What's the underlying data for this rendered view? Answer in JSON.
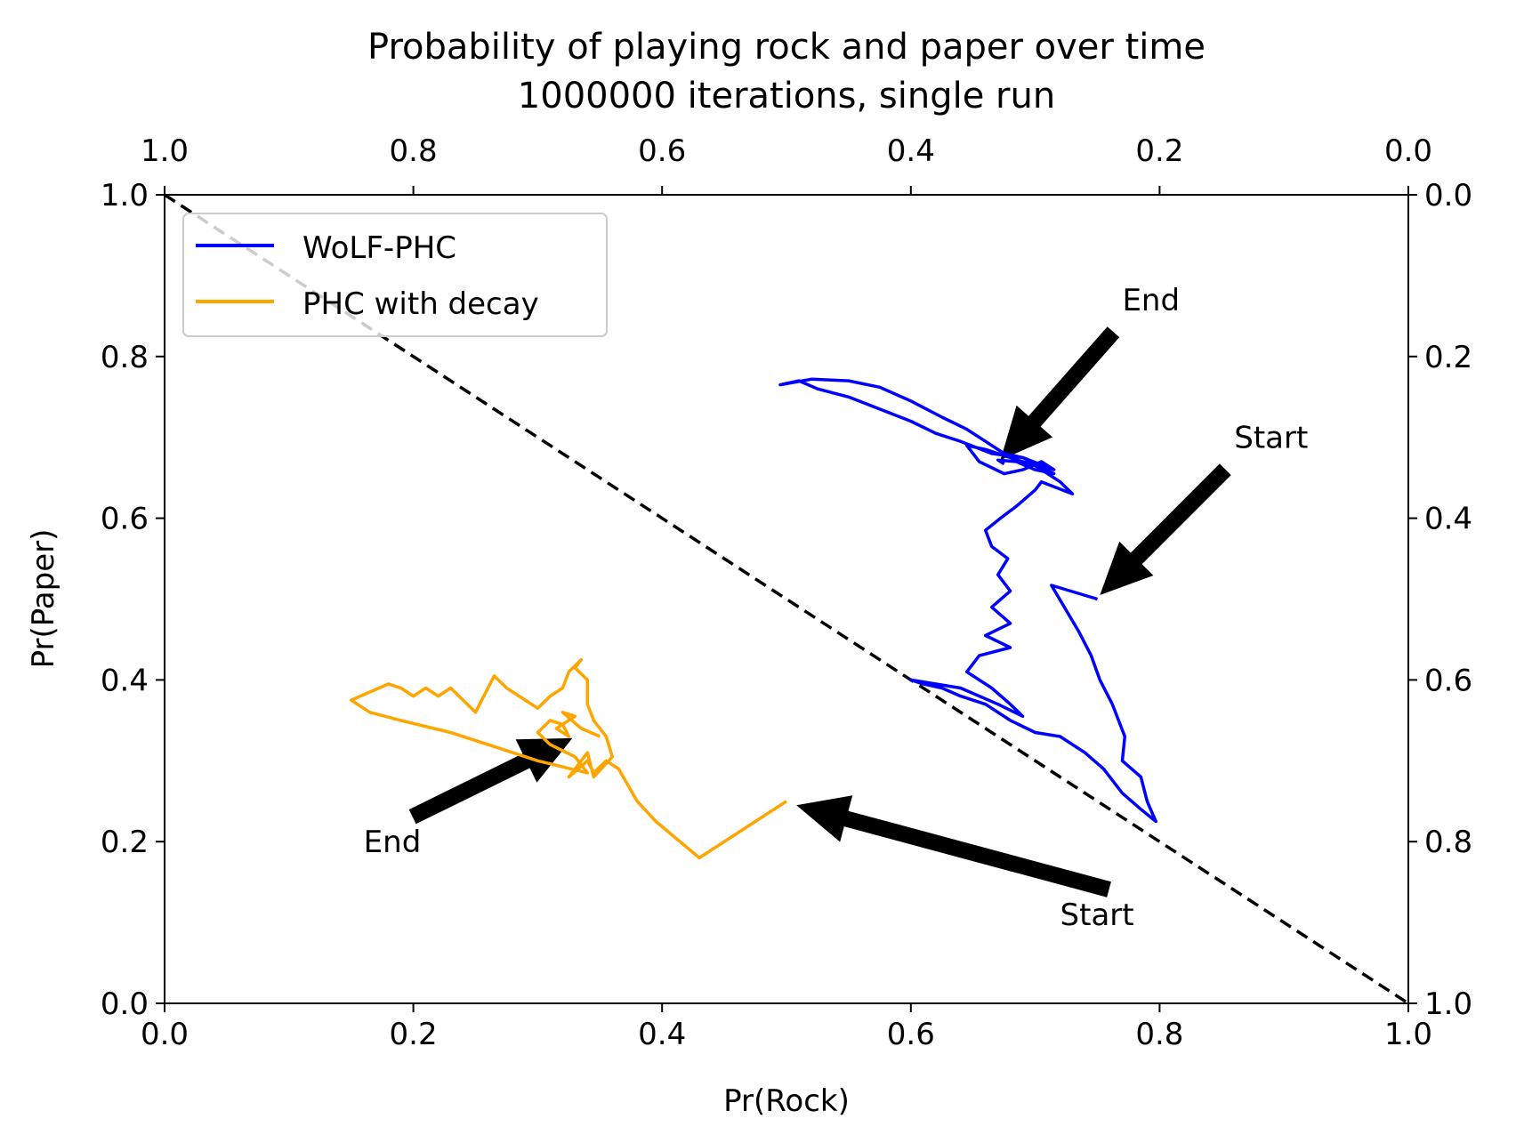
{
  "chart_data": {
    "type": "line",
    "title": "Probability of playing rock and paper over time",
    "subtitle": "1000000 iterations, single run",
    "xlabel": "Pr(Rock)",
    "ylabel": "Pr(Paper)",
    "xlim": [
      0,
      1
    ],
    "ylim": [
      0,
      1
    ],
    "secondary_axes": {
      "top": "reversed 1.0 to 0.0",
      "right": "reversed 0.0 to 1.0"
    },
    "x_ticks": [
      "0.0",
      "0.2",
      "0.4",
      "0.6",
      "0.8",
      "1.0"
    ],
    "y_ticks": [
      "0.0",
      "0.2",
      "0.4",
      "0.6",
      "0.8",
      "1.0"
    ],
    "top_ticks": [
      "1.0",
      "0.8",
      "0.6",
      "0.4",
      "0.2",
      "0.0"
    ],
    "right_ticks": [
      "1.0",
      "0.8",
      "0.6",
      "0.4",
      "0.2",
      "0.0"
    ],
    "grid": false,
    "legend_position": "top-left",
    "reference_line": {
      "from": [
        0,
        1
      ],
      "to": [
        1,
        0
      ],
      "style": "dashed",
      "color": "#000000"
    },
    "series": [
      {
        "name": "WoLF-PHC",
        "color": "#0000ff",
        "points": [
          [
            0.75,
            0.5
          ],
          [
            0.713,
            0.517
          ],
          [
            0.735,
            0.46
          ],
          [
            0.745,
            0.43
          ],
          [
            0.752,
            0.4
          ],
          [
            0.762,
            0.37
          ],
          [
            0.772,
            0.33
          ],
          [
            0.77,
            0.3
          ],
          [
            0.785,
            0.28
          ],
          [
            0.79,
            0.25
          ],
          [
            0.797,
            0.225
          ],
          [
            0.785,
            0.24
          ],
          [
            0.77,
            0.26
          ],
          [
            0.755,
            0.29
          ],
          [
            0.74,
            0.31
          ],
          [
            0.72,
            0.33
          ],
          [
            0.7,
            0.335
          ],
          [
            0.68,
            0.35
          ],
          [
            0.66,
            0.37
          ],
          [
            0.64,
            0.38
          ],
          [
            0.625,
            0.39
          ],
          [
            0.61,
            0.395
          ],
          [
            0.6,
            0.4
          ],
          [
            0.64,
            0.39
          ],
          [
            0.67,
            0.37
          ],
          [
            0.69,
            0.355
          ],
          [
            0.68,
            0.37
          ],
          [
            0.665,
            0.39
          ],
          [
            0.645,
            0.41
          ],
          [
            0.655,
            0.43
          ],
          [
            0.68,
            0.44
          ],
          [
            0.66,
            0.455
          ],
          [
            0.68,
            0.47
          ],
          [
            0.665,
            0.49
          ],
          [
            0.68,
            0.51
          ],
          [
            0.67,
            0.53
          ],
          [
            0.678,
            0.55
          ],
          [
            0.665,
            0.565
          ],
          [
            0.66,
            0.585
          ],
          [
            0.672,
            0.6
          ],
          [
            0.685,
            0.615
          ],
          [
            0.7,
            0.635
          ],
          [
            0.705,
            0.645
          ],
          [
            0.73,
            0.63
          ],
          [
            0.72,
            0.645
          ],
          [
            0.7,
            0.665
          ],
          [
            0.68,
            0.675
          ],
          [
            0.66,
            0.685
          ],
          [
            0.645,
            0.69
          ],
          [
            0.655,
            0.67
          ],
          [
            0.675,
            0.655
          ],
          [
            0.69,
            0.66
          ],
          [
            0.705,
            0.67
          ],
          [
            0.715,
            0.66
          ],
          [
            0.69,
            0.675
          ],
          [
            0.665,
            0.68
          ],
          [
            0.64,
            0.695
          ],
          [
            0.62,
            0.705
          ],
          [
            0.6,
            0.72
          ],
          [
            0.575,
            0.735
          ],
          [
            0.55,
            0.75
          ],
          [
            0.525,
            0.76
          ],
          [
            0.51,
            0.77
          ],
          [
            0.495,
            0.765
          ],
          [
            0.52,
            0.772
          ],
          [
            0.55,
            0.77
          ],
          [
            0.575,
            0.762
          ],
          [
            0.6,
            0.745
          ],
          [
            0.625,
            0.725
          ],
          [
            0.645,
            0.71
          ],
          [
            0.66,
            0.695
          ],
          [
            0.675,
            0.68
          ],
          [
            0.69,
            0.675
          ],
          [
            0.715,
            0.655
          ],
          [
            0.7,
            0.66
          ],
          [
            0.685,
            0.67
          ],
          [
            0.67,
            0.672
          ],
          [
            0.675,
            0.667
          ]
        ]
      },
      {
        "name": "PHC with decay",
        "color": "#ffa500",
        "points": [
          [
            0.5,
            0.25
          ],
          [
            0.43,
            0.18
          ],
          [
            0.395,
            0.225
          ],
          [
            0.38,
            0.25
          ],
          [
            0.365,
            0.29
          ],
          [
            0.355,
            0.3
          ],
          [
            0.345,
            0.285
          ],
          [
            0.34,
            0.3
          ],
          [
            0.325,
            0.28
          ],
          [
            0.34,
            0.31
          ],
          [
            0.345,
            0.28
          ],
          [
            0.36,
            0.305
          ],
          [
            0.355,
            0.33
          ],
          [
            0.345,
            0.35
          ],
          [
            0.34,
            0.37
          ],
          [
            0.34,
            0.4
          ],
          [
            0.33,
            0.415
          ],
          [
            0.335,
            0.425
          ],
          [
            0.325,
            0.41
          ],
          [
            0.32,
            0.39
          ],
          [
            0.31,
            0.38
          ],
          [
            0.3,
            0.365
          ],
          [
            0.29,
            0.375
          ],
          [
            0.275,
            0.39
          ],
          [
            0.265,
            0.405
          ],
          [
            0.26,
            0.39
          ],
          [
            0.255,
            0.375
          ],
          [
            0.25,
            0.36
          ],
          [
            0.24,
            0.375
          ],
          [
            0.23,
            0.39
          ],
          [
            0.22,
            0.38
          ],
          [
            0.21,
            0.39
          ],
          [
            0.2,
            0.38
          ],
          [
            0.19,
            0.39
          ],
          [
            0.18,
            0.395
          ],
          [
            0.165,
            0.385
          ],
          [
            0.15,
            0.375
          ],
          [
            0.165,
            0.36
          ],
          [
            0.19,
            0.35
          ],
          [
            0.23,
            0.335
          ],
          [
            0.26,
            0.32
          ],
          [
            0.3,
            0.3
          ],
          [
            0.34,
            0.285
          ],
          [
            0.33,
            0.305
          ],
          [
            0.31,
            0.32
          ],
          [
            0.3,
            0.335
          ],
          [
            0.31,
            0.35
          ],
          [
            0.32,
            0.345
          ],
          [
            0.325,
            0.33
          ],
          [
            0.315,
            0.34
          ],
          [
            0.33,
            0.355
          ],
          [
            0.32,
            0.36
          ],
          [
            0.335,
            0.34
          ],
          [
            0.35,
            0.33
          ]
        ]
      }
    ],
    "annotations": [
      {
        "text": "End",
        "target": [
          0.672,
          0.672
        ],
        "label_at": [
          0.77,
          0.87
        ]
      },
      {
        "text": "Start",
        "target": [
          0.752,
          0.505
        ],
        "label_at": [
          0.86,
          0.7
        ]
      },
      {
        "text": "End",
        "target": [
          0.328,
          0.328
        ],
        "label_at": [
          0.16,
          0.2
        ]
      },
      {
        "text": "Start",
        "target": [
          0.508,
          0.245
        ],
        "label_at": [
          0.72,
          0.11
        ]
      }
    ]
  }
}
